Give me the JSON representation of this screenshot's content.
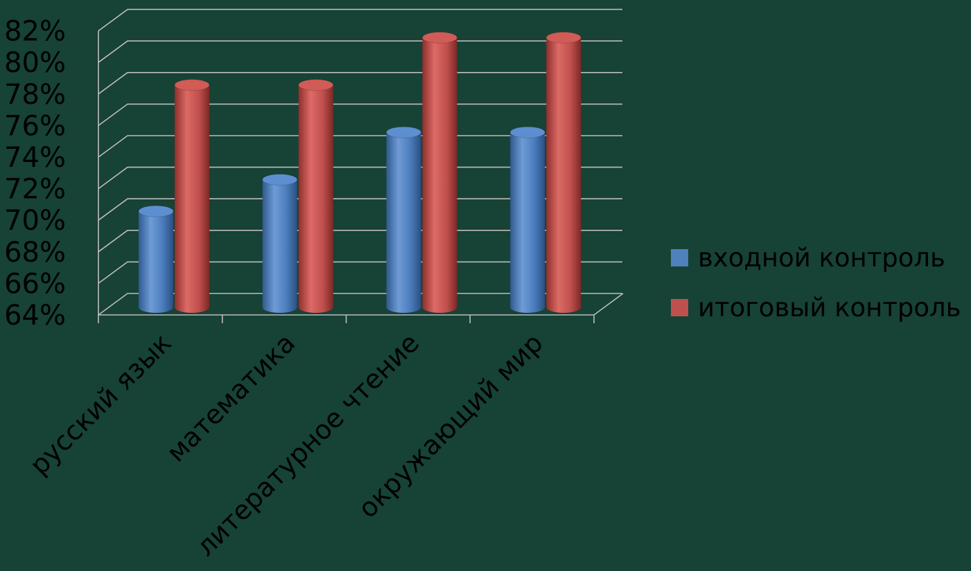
{
  "chart_data": {
    "type": "bar",
    "categories": [
      "русский язык",
      "математика",
      "литературное чтение",
      "окружающий мир"
    ],
    "series": [
      {
        "name": "входной контроль",
        "values": [
          70,
          72,
          75,
          75
        ],
        "color": "#4F81BD"
      },
      {
        "name": "итоговый контроль",
        "values": [
          78,
          78,
          81,
          81
        ],
        "color": "#C0504D"
      }
    ],
    "ylim": [
      64,
      82
    ],
    "yticks": [
      "64%",
      "66%",
      "68%",
      "70%",
      "72%",
      "74%",
      "76%",
      "78%",
      "80%",
      "82%"
    ],
    "grid": true,
    "legend_position": "right",
    "style": "3d-cylinder"
  }
}
